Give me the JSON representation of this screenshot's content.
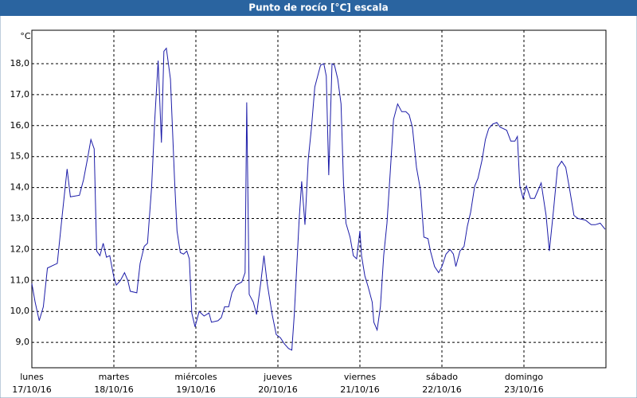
{
  "chart_data": {
    "type": "line",
    "title": "Punto de rocío [°C] escala",
    "ylabel": "°C",
    "xlim": [
      0,
      7
    ],
    "xticks": [
      {
        "value": 0,
        "label": "17/10/16"
      },
      {
        "value": 1,
        "label": "18/10/16"
      },
      {
        "value": 2,
        "label": "19/10/16"
      },
      {
        "value": 3,
        "label": "20/10/16"
      },
      {
        "value": 4,
        "label": "21/10/16"
      },
      {
        "value": 5,
        "label": "22/10/16"
      },
      {
        "value": 6,
        "label": "23/10/16"
      }
    ],
    "xtick_weekdays": [
      "lunes",
      "martes",
      "miércoles",
      "jueves",
      "viernes",
      "sábado",
      "domingo"
    ],
    "ylim": [
      8.18,
      19.08
    ],
    "yticks": [
      {
        "value": 9,
        "label": "9,0"
      },
      {
        "value": 10,
        "label": "10,0"
      },
      {
        "value": 11,
        "label": "11,0"
      },
      {
        "value": 12,
        "label": "12,0"
      },
      {
        "value": 13,
        "label": "13,0"
      },
      {
        "value": 14,
        "label": "14,0"
      },
      {
        "value": 15,
        "label": "15,0"
      },
      {
        "value": 16,
        "label": "16,0"
      },
      {
        "value": 17,
        "label": "17,0"
      },
      {
        "value": 18,
        "label": "18,0"
      }
    ],
    "grid": true,
    "color": "#1c1ca8",
    "x": [
      0,
      0.04,
      0.09,
      0.14,
      0.19,
      0.27,
      0.31,
      0.37,
      0.43,
      0.47,
      0.58,
      0.63,
      0.68,
      0.72,
      0.76,
      0.79,
      0.83,
      0.87,
      0.91,
      0.95,
      1.0,
      1.03,
      1.08,
      1.13,
      1.17,
      1.2,
      1.28,
      1.32,
      1.37,
      1.41,
      1.46,
      1.5,
      1.54,
      1.58,
      1.61,
      1.64,
      1.69,
      1.74,
      1.77,
      1.81,
      1.85,
      1.89,
      1.92,
      1.95,
      1.99,
      2.04,
      2.1,
      2.16,
      2.19,
      2.27,
      2.31,
      2.35,
      2.4,
      2.44,
      2.49,
      2.56,
      2.6,
      2.62,
      2.65,
      2.7,
      2.74,
      2.79,
      2.83,
      2.87,
      2.93,
      2.98,
      3.03,
      3.08,
      3.13,
      3.17,
      3.2,
      3.26,
      3.29,
      3.33,
      3.37,
      3.41,
      3.45,
      3.48,
      3.52,
      3.56,
      3.59,
      3.62,
      3.66,
      3.69,
      3.73,
      3.77,
      3.8,
      3.83,
      3.88,
      3.92,
      3.96,
      4.0,
      4.02,
      4.06,
      4.1,
      4.15,
      4.17,
      4.21,
      4.25,
      4.29,
      4.33,
      4.37,
      4.41,
      4.46,
      4.51,
      4.56,
      4.6,
      4.64,
      4.69,
      4.74,
      4.78,
      4.83,
      4.86,
      4.91,
      4.96,
      5.0,
      5.05,
      5.1,
      5.14,
      5.17,
      5.22,
      5.27,
      5.31,
      5.35,
      5.4,
      5.44,
      5.49,
      5.53,
      5.57,
      5.62,
      5.67,
      5.71,
      5.79,
      5.84,
      5.89,
      5.92,
      5.95,
      5.99,
      6.03,
      6.08,
      6.13,
      6.17,
      6.21,
      6.27,
      6.31,
      6.36,
      6.41,
      6.46,
      6.51,
      6.56,
      6.61,
      6.66,
      6.75,
      6.82,
      6.87,
      6.93,
      6.99
    ],
    "values": [
      10.9,
      10.3,
      9.7,
      10.15,
      11.4,
      11.5,
      11.55,
      13.1,
      14.6,
      13.7,
      13.75,
      14.25,
      14.95,
      15.55,
      15.25,
      11.95,
      11.8,
      12.2,
      11.75,
      11.8,
      11.1,
      10.85,
      11.0,
      11.25,
      11.0,
      10.65,
      10.6,
      11.55,
      12.1,
      12.2,
      14.0,
      16.25,
      18.1,
      15.45,
      18.4,
      18.5,
      17.5,
      14.25,
      12.6,
      11.9,
      11.85,
      11.95,
      11.7,
      9.95,
      9.5,
      10.0,
      9.85,
      9.95,
      9.65,
      9.7,
      9.8,
      10.15,
      10.15,
      10.6,
      10.85,
      10.95,
      11.25,
      16.75,
      10.55,
      10.3,
      9.9,
      10.9,
      11.8,
      10.9,
      9.9,
      9.25,
      9.15,
      8.95,
      8.8,
      8.75,
      9.9,
      13.0,
      14.2,
      12.8,
      14.9,
      15.95,
      17.25,
      17.55,
      17.95,
      18.0,
      17.6,
      14.4,
      18.0,
      17.95,
      17.5,
      16.7,
      14.15,
      12.85,
      12.4,
      11.8,
      11.7,
      12.6,
      11.8,
      11.15,
      10.8,
      10.3,
      9.65,
      9.4,
      10.15,
      11.8,
      12.85,
      14.5,
      16.2,
      16.7,
      16.45,
      16.45,
      16.35,
      15.95,
      14.65,
      13.9,
      12.4,
      12.35,
      11.95,
      11.45,
      11.25,
      11.45,
      11.85,
      12.0,
      11.85,
      11.45,
      11.95,
      12.1,
      12.75,
      13.2,
      14.05,
      14.3,
      14.9,
      15.55,
      15.9,
      16.05,
      16.1,
      15.95,
      15.85,
      15.5,
      15.5,
      15.65,
      14.05,
      13.65,
      14.05,
      13.65,
      13.65,
      13.9,
      14.15,
      13.1,
      11.95,
      13.25,
      14.65,
      14.85,
      14.65,
      13.9,
      13.1,
      13.0,
      12.95,
      12.8,
      12.8,
      12.85,
      12.65
    ]
  }
}
